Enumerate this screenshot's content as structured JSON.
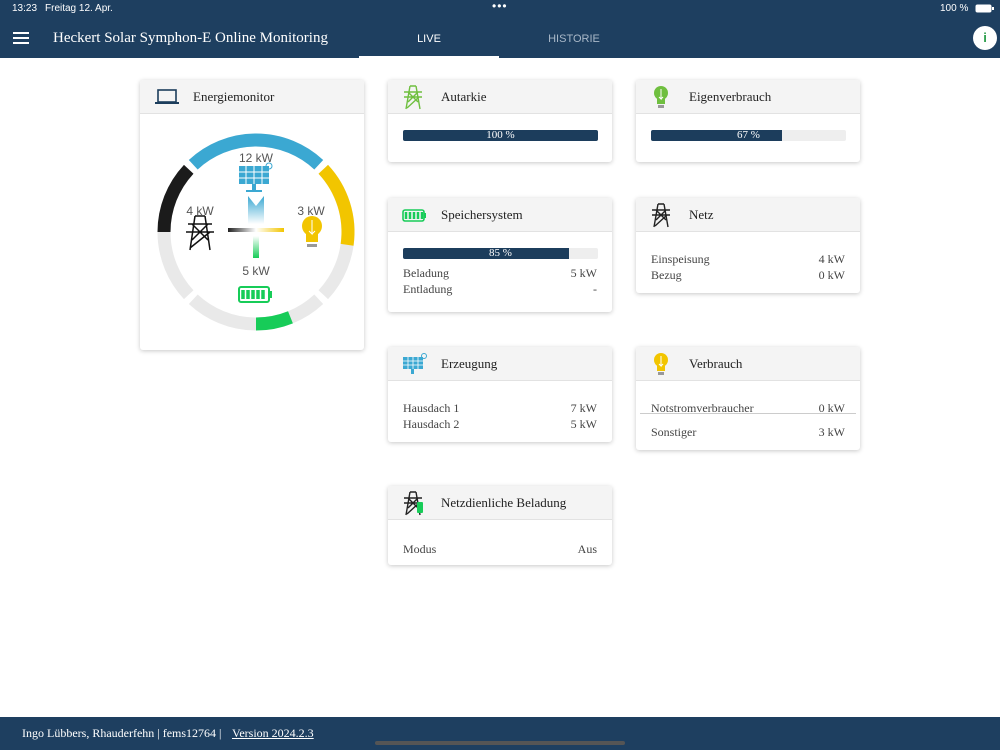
{
  "status_bar": {
    "time": "13:23",
    "date": "Freitag 12. Apr.",
    "battery": "100 %"
  },
  "header": {
    "title": "Heckert Solar Symphon-E Online Monitoring",
    "tabs": [
      "LIVE",
      "HISTORIE"
    ],
    "info": "i"
  },
  "energy_monitor": {
    "title": "Energiemonitor",
    "production": "12 kW",
    "grid": "4 kW",
    "consumption": "3 kW",
    "storage": "5 kW"
  },
  "cards": [
    {
      "title": "Autarkie",
      "percent": 100,
      "percent_label": "100 %"
    },
    {
      "title": "Eigenverbrauch",
      "percent": 67,
      "percent_label": "67 %"
    },
    {
      "title": "Speichersystem",
      "percent": 85,
      "percent_label": "85 %",
      "rows": [
        {
          "label": "Beladung",
          "value": "5 kW"
        },
        {
          "label": "Entladung",
          "value": "-"
        }
      ]
    },
    {
      "title": "Netz",
      "rows": [
        {
          "label": "Einspeisung",
          "value": "4 kW"
        },
        {
          "label": "Bezug",
          "value": "0 kW"
        }
      ]
    },
    {
      "title": "Erzeugung",
      "rows": [
        {
          "label": "Hausdach 1",
          "value": "7 kW"
        },
        {
          "label": "Hausdach 2",
          "value": "5 kW"
        }
      ]
    },
    {
      "title": "Verbrauch",
      "rows": [
        {
          "label": "Notstromverbraucher",
          "value": "0 kW"
        },
        {
          "label": "Sonstiger",
          "value": "3 kW"
        }
      ]
    },
    {
      "title": "Netzdienliche Beladung",
      "rows": [
        {
          "label": "Modus",
          "value": "Aus"
        }
      ]
    }
  ],
  "footer": {
    "text": "Ingo Lübbers, Rhauderfehn | fems12764 | ",
    "version": "Version 2024.2.3"
  }
}
